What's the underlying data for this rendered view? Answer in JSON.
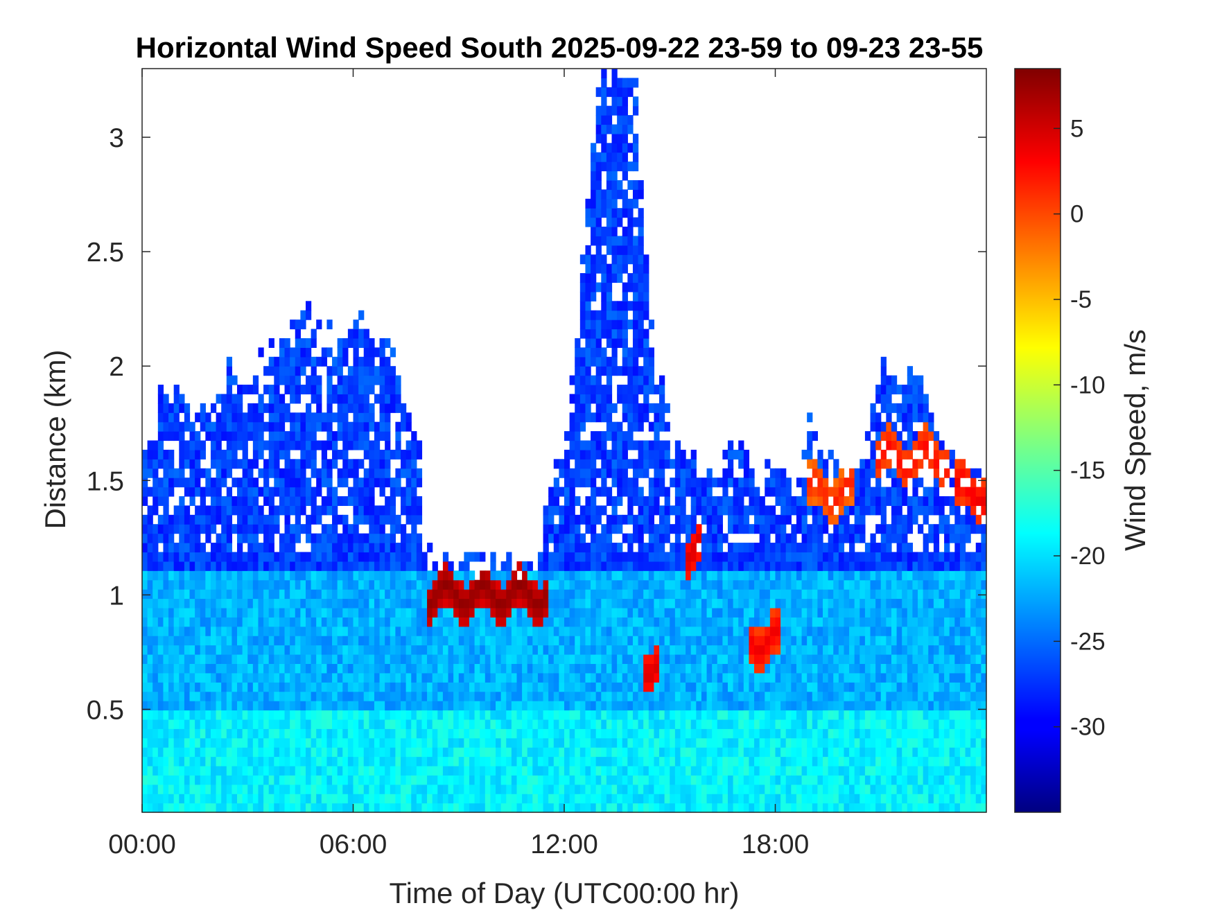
{
  "chart_data": {
    "type": "heatmap",
    "title": "Horizontal Wind Speed South 2025-09-22 23-59 to 09-23 23-55",
    "xlabel": "Time of Day (UTC00:00 hr)",
    "ylabel": "Distance (km)",
    "colorbar_label": "Wind Speed, m/s",
    "colormap": "jet",
    "x_range_hours": [
      0,
      24
    ],
    "xlim_hours": [
      0,
      24
    ],
    "ylim_km": [
      0.05,
      3.3
    ],
    "clim": [
      -35,
      8.5
    ],
    "x_ticks": [
      {
        "value": 0,
        "label": "00:00"
      },
      {
        "value": 6,
        "label": "06:00"
      },
      {
        "value": 12,
        "label": "12:00"
      },
      {
        "value": 18,
        "label": "18:00"
      }
    ],
    "y_ticks": [
      {
        "value": 0.5,
        "label": "0.5"
      },
      {
        "value": 1,
        "label": "1"
      },
      {
        "value": 1.5,
        "label": "1.5"
      },
      {
        "value": 2,
        "label": "2"
      },
      {
        "value": 2.5,
        "label": "2.5"
      },
      {
        "value": 3,
        "label": "3"
      }
    ],
    "colorbar_ticks": [
      {
        "value": 5,
        "label": "5"
      },
      {
        "value": 0,
        "label": "0"
      },
      {
        "value": -5,
        "label": "-5"
      },
      {
        "value": -10,
        "label": "-10"
      },
      {
        "value": -15,
        "label": "-15"
      },
      {
        "value": -20,
        "label": "-20"
      },
      {
        "value": -25,
        "label": "-25"
      },
      {
        "value": -30,
        "label": "-30"
      }
    ],
    "grid": false,
    "data_top_profile_km": [
      {
        "t": 0.0,
        "top": 1.6
      },
      {
        "t": 0.5,
        "top": 1.9
      },
      {
        "t": 1.0,
        "top": 1.85
      },
      {
        "t": 1.5,
        "top": 1.75
      },
      {
        "t": 2.0,
        "top": 1.8
      },
      {
        "t": 2.5,
        "top": 2.05
      },
      {
        "t": 3.0,
        "top": 1.9
      },
      {
        "t": 3.5,
        "top": 2.05
      },
      {
        "t": 4.0,
        "top": 2.1
      },
      {
        "t": 4.5,
        "top": 2.25
      },
      {
        "t": 5.0,
        "top": 2.2
      },
      {
        "t": 5.5,
        "top": 2.1
      },
      {
        "t": 6.0,
        "top": 2.25
      },
      {
        "t": 6.5,
        "top": 2.15
      },
      {
        "t": 7.0,
        "top": 2.1
      },
      {
        "t": 7.5,
        "top": 1.8
      },
      {
        "t": 7.9,
        "top": 1.7
      },
      {
        "t": 8.0,
        "top": 1.15
      },
      {
        "t": 11.4,
        "top": 1.12
      },
      {
        "t": 11.5,
        "top": 1.5
      },
      {
        "t": 12.0,
        "top": 1.55
      },
      {
        "t": 12.5,
        "top": 2.4
      },
      {
        "t": 13.0,
        "top": 3.3
      },
      {
        "t": 14.0,
        "top": 3.3
      },
      {
        "t": 14.5,
        "top": 2.1
      },
      {
        "t": 15.0,
        "top": 1.75
      },
      {
        "t": 15.5,
        "top": 1.6
      },
      {
        "t": 16.0,
        "top": 1.5
      },
      {
        "t": 16.5,
        "top": 1.6
      },
      {
        "t": 17.0,
        "top": 1.7
      },
      {
        "t": 17.5,
        "top": 1.5
      },
      {
        "t": 18.0,
        "top": 1.55
      },
      {
        "t": 18.5,
        "top": 1.5
      },
      {
        "t": 19.0,
        "top": 1.75
      },
      {
        "t": 19.5,
        "top": 1.6
      },
      {
        "t": 20.0,
        "top": 1.5
      },
      {
        "t": 20.5,
        "top": 1.6
      },
      {
        "t": 21.0,
        "top": 2.0
      },
      {
        "t": 21.5,
        "top": 1.9
      },
      {
        "t": 22.0,
        "top": 2.0
      },
      {
        "t": 22.5,
        "top": 1.8
      },
      {
        "t": 23.0,
        "top": 1.6
      },
      {
        "t": 23.5,
        "top": 1.55
      },
      {
        "t": 24.0,
        "top": 1.5
      }
    ],
    "features": [
      {
        "name": "positive jet layer",
        "t_start": 8.1,
        "t_end": 11.5,
        "altitude_km": 1.0,
        "value": 8
      },
      {
        "name": "positive patch",
        "t_start": 15.4,
        "t_end": 15.9,
        "altitude_km": 1.2,
        "value": 5
      },
      {
        "name": "positive patch",
        "t_start": 17.3,
        "t_end": 18.2,
        "altitude_km": 0.8,
        "value": 4
      },
      {
        "name": "positive patch",
        "t_start": 14.2,
        "t_end": 14.7,
        "altitude_km": 0.7,
        "value": 5
      },
      {
        "name": "positive patch",
        "t_start": 18.9,
        "t_end": 20.2,
        "altitude_km": 1.45,
        "value": 2
      },
      {
        "name": "positive patch",
        "t_start": 20.8,
        "t_end": 23.0,
        "altitude_km": 1.6,
        "value": 3
      },
      {
        "name": "positive patch",
        "t_start": 23.1,
        "t_end": 24.0,
        "altitude_km": 1.45,
        "value": 4
      }
    ],
    "typical_values": {
      "near_surface": -19,
      "boundary_layer": -22,
      "aloft": -27
    }
  }
}
